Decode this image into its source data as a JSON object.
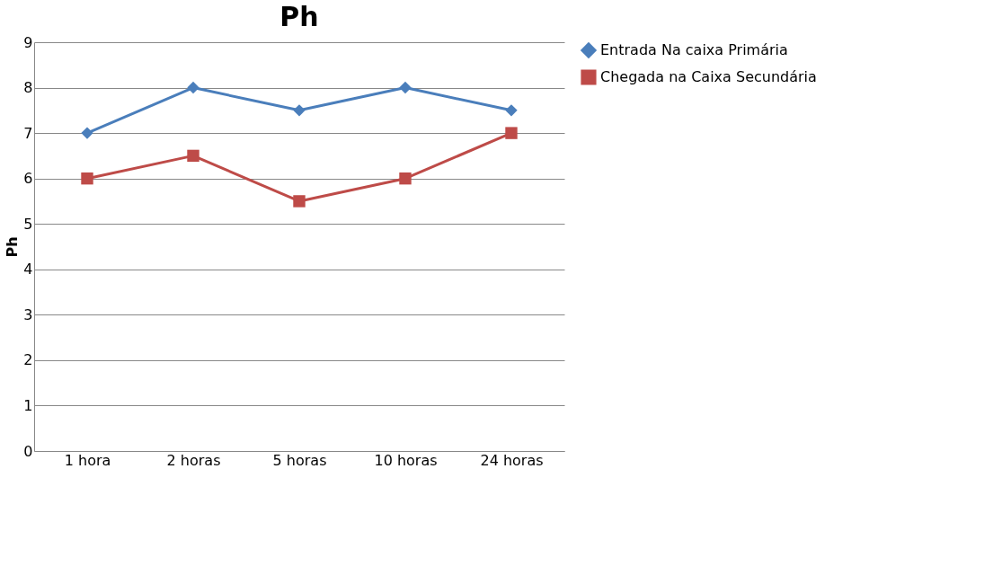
{
  "chart_data": {
    "type": "line",
    "title": "Ph",
    "ylabel": "Ph",
    "categories": [
      "1 hora",
      "2 horas",
      "5 horas",
      "10 horas",
      "24 horas"
    ],
    "series": [
      {
        "name": "Entrada Na caixa Primária",
        "color": "#4a7ebb",
        "marker": "diamond",
        "values": [
          7,
          8,
          7.5,
          8,
          7.5
        ]
      },
      {
        "name": "Chegada na Caixa Secundária",
        "color": "#be4b48",
        "marker": "square",
        "values": [
          6,
          6.5,
          5.5,
          6,
          7
        ]
      }
    ],
    "ylim": [
      0,
      9
    ],
    "yticks": [
      0,
      1,
      2,
      3,
      4,
      5,
      6,
      7,
      8,
      9
    ],
    "grid": "y",
    "legend": "right",
    "line_style": "solid"
  }
}
